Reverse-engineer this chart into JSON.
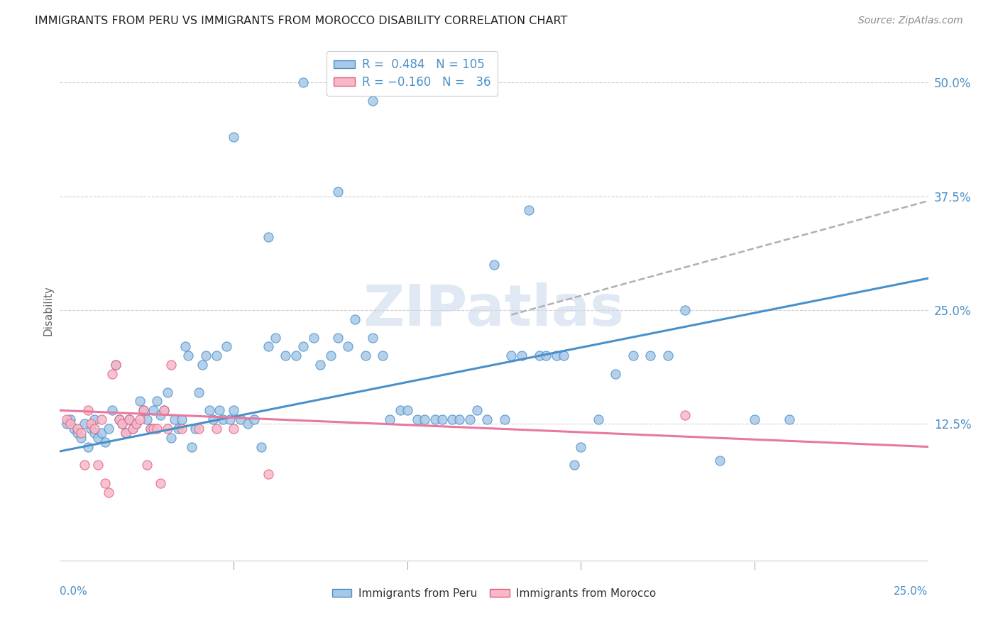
{
  "title": "IMMIGRANTS FROM PERU VS IMMIGRANTS FROM MOROCCO DISABILITY CORRELATION CHART",
  "source": "Source: ZipAtlas.com",
  "ylabel": "Disability",
  "y_tick_labels": [
    "12.5%",
    "25.0%",
    "37.5%",
    "50.0%"
  ],
  "y_tick_positions": [
    0.125,
    0.25,
    0.375,
    0.5
  ],
  "xlim": [
    0.0,
    0.25
  ],
  "ylim": [
    -0.035,
    0.535
  ],
  "legend_R_peru": "0.484",
  "legend_N_peru": "105",
  "legend_R_morocco": "-0.160",
  "legend_N_morocco": "36",
  "color_peru_fill": "#a8c8e8",
  "color_peru_edge": "#4a90c8",
  "color_morocco_fill": "#f8b8c8",
  "color_morocco_edge": "#e06080",
  "color_peru_line": "#4a90c8",
  "color_morocco_line": "#e878a0",
  "color_dashed_line": "#b0b0b0",
  "watermark_color": "#ccdaeb",
  "background_color": "#ffffff",
  "grid_color": "#d0d0d0",
  "peru_points_x": [
    0.002,
    0.003,
    0.004,
    0.005,
    0.006,
    0.007,
    0.008,
    0.009,
    0.01,
    0.01,
    0.011,
    0.012,
    0.013,
    0.014,
    0.015,
    0.016,
    0.017,
    0.018,
    0.019,
    0.02,
    0.021,
    0.022,
    0.023,
    0.024,
    0.025,
    0.026,
    0.027,
    0.028,
    0.029,
    0.03,
    0.031,
    0.032,
    0.033,
    0.034,
    0.035,
    0.036,
    0.037,
    0.038,
    0.039,
    0.04,
    0.041,
    0.042,
    0.043,
    0.044,
    0.045,
    0.046,
    0.047,
    0.048,
    0.049,
    0.05,
    0.052,
    0.054,
    0.056,
    0.058,
    0.06,
    0.062,
    0.065,
    0.068,
    0.07,
    0.073,
    0.075,
    0.078,
    0.08,
    0.083,
    0.085,
    0.088,
    0.09,
    0.093,
    0.095,
    0.098,
    0.1,
    0.103,
    0.105,
    0.108,
    0.11,
    0.113,
    0.115,
    0.118,
    0.12,
    0.123,
    0.125,
    0.128,
    0.13,
    0.133,
    0.135,
    0.138,
    0.14,
    0.143,
    0.145,
    0.148,
    0.15,
    0.155,
    0.16,
    0.165,
    0.17,
    0.175,
    0.18,
    0.19,
    0.2,
    0.21,
    0.05,
    0.06,
    0.07,
    0.08,
    0.09
  ],
  "peru_points_y": [
    0.125,
    0.13,
    0.12,
    0.115,
    0.11,
    0.125,
    0.1,
    0.12,
    0.115,
    0.13,
    0.11,
    0.115,
    0.105,
    0.12,
    0.14,
    0.19,
    0.13,
    0.125,
    0.115,
    0.13,
    0.12,
    0.125,
    0.15,
    0.14,
    0.13,
    0.12,
    0.14,
    0.15,
    0.135,
    0.14,
    0.16,
    0.11,
    0.13,
    0.12,
    0.13,
    0.21,
    0.2,
    0.1,
    0.12,
    0.16,
    0.19,
    0.2,
    0.14,
    0.13,
    0.2,
    0.14,
    0.13,
    0.21,
    0.13,
    0.14,
    0.13,
    0.125,
    0.13,
    0.1,
    0.21,
    0.22,
    0.2,
    0.2,
    0.21,
    0.22,
    0.19,
    0.2,
    0.22,
    0.21,
    0.24,
    0.2,
    0.22,
    0.2,
    0.13,
    0.14,
    0.14,
    0.13,
    0.13,
    0.13,
    0.13,
    0.13,
    0.13,
    0.13,
    0.14,
    0.13,
    0.3,
    0.13,
    0.2,
    0.2,
    0.36,
    0.2,
    0.2,
    0.2,
    0.2,
    0.08,
    0.1,
    0.13,
    0.18,
    0.2,
    0.2,
    0.2,
    0.25,
    0.085,
    0.13,
    0.13,
    0.44,
    0.33,
    0.5,
    0.38,
    0.48
  ],
  "morocco_points_x": [
    0.002,
    0.003,
    0.005,
    0.006,
    0.007,
    0.008,
    0.009,
    0.01,
    0.011,
    0.012,
    0.013,
    0.014,
    0.015,
    0.016,
    0.017,
    0.018,
    0.019,
    0.02,
    0.021,
    0.022,
    0.023,
    0.024,
    0.025,
    0.026,
    0.027,
    0.028,
    0.029,
    0.03,
    0.031,
    0.032,
    0.035,
    0.04,
    0.045,
    0.05,
    0.06,
    0.18
  ],
  "morocco_points_y": [
    0.13,
    0.125,
    0.12,
    0.115,
    0.08,
    0.14,
    0.125,
    0.12,
    0.08,
    0.13,
    0.06,
    0.05,
    0.18,
    0.19,
    0.13,
    0.125,
    0.115,
    0.13,
    0.12,
    0.125,
    0.13,
    0.14,
    0.08,
    0.12,
    0.12,
    0.12,
    0.06,
    0.14,
    0.12,
    0.19,
    0.12,
    0.12,
    0.12,
    0.12,
    0.07,
    0.135
  ],
  "peru_line_x": [
    0.0,
    0.25
  ],
  "peru_line_y": [
    0.095,
    0.285
  ],
  "morocco_line_x": [
    0.0,
    0.25
  ],
  "morocco_line_y": [
    0.14,
    0.1
  ],
  "dashed_line_x": [
    0.13,
    0.25
  ],
  "dashed_line_y": [
    0.245,
    0.37
  ]
}
